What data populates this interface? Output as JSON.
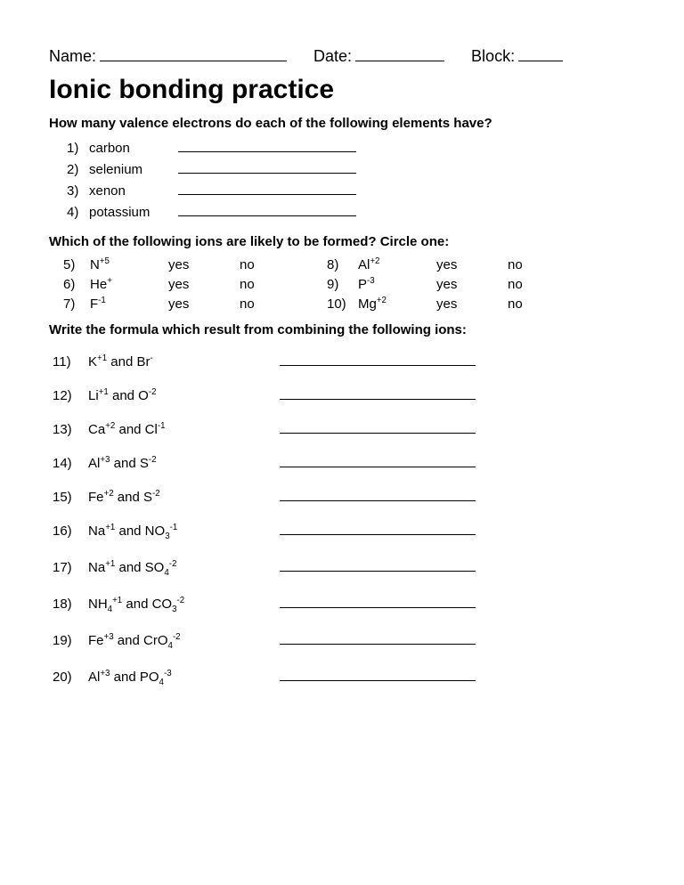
{
  "header": {
    "name_label": "Name:",
    "date_label": "Date:",
    "block_label": "Block:"
  },
  "title": "Ionic bonding practice",
  "section1": {
    "heading": "How many valence electrons do each of the following elements have?",
    "items": [
      {
        "num": "1)",
        "element": "carbon"
      },
      {
        "num": "2)",
        "element": "selenium"
      },
      {
        "num": "3)",
        "element": "xenon"
      },
      {
        "num": "4)",
        "element": "potassium"
      }
    ]
  },
  "section2": {
    "heading": "Which of the following ions are likely to be formed? Circle one:",
    "yes": "yes",
    "no": "no",
    "left": [
      {
        "num": "5)",
        "formula": "N<sup>+5</sup>"
      },
      {
        "num": "6)",
        "formula": "He<sup>+</sup>"
      },
      {
        "num": "7)",
        "formula": "F<sup>-1</sup>"
      }
    ],
    "right": [
      {
        "num": "8)",
        "formula": "Al<sup>+2</sup>"
      },
      {
        "num": "9)",
        "formula": "P<sup>-3</sup>"
      },
      {
        "num": "10)",
        "formula": "Mg<sup>+2</sup>"
      }
    ]
  },
  "section3": {
    "heading": "Write the formula which result from combining the following ions:",
    "items": [
      {
        "num": "11)",
        "text": "K<sup>+1</sup> and Br<sup>-</sup>"
      },
      {
        "num": "12)",
        "text": "Li<sup>+1</sup> and O<sup>-2</sup>"
      },
      {
        "num": "13)",
        "text": "Ca<sup>+2</sup> and Cl<sup>-1</sup>"
      },
      {
        "num": "14)",
        "text": "Al<sup>+3</sup> and S<sup>-2</sup>"
      },
      {
        "num": "15)",
        "text": "Fe<sup>+2</sup> and S<sup>-2</sup>"
      },
      {
        "num": "16)",
        "text": "Na<sup>+1</sup> and NO<sub>3</sub><sup>-1</sup>"
      },
      {
        "num": "17)",
        "text": "Na<sup>+1</sup> and SO<sub>4</sub><sup>-2</sup>"
      },
      {
        "num": "18)",
        "text": "NH<sub>4</sub><sup>+1</sup> and CO<sub>3</sub><sup>-2</sup>"
      },
      {
        "num": "19)",
        "text": "Fe<sup>+3</sup> and CrO<sub>4</sub><sup>-2</sup>"
      },
      {
        "num": "20)",
        "text": "Al<sup>+3</sup> and PO<sub>4</sub><sup>-3</sup>"
      }
    ]
  }
}
